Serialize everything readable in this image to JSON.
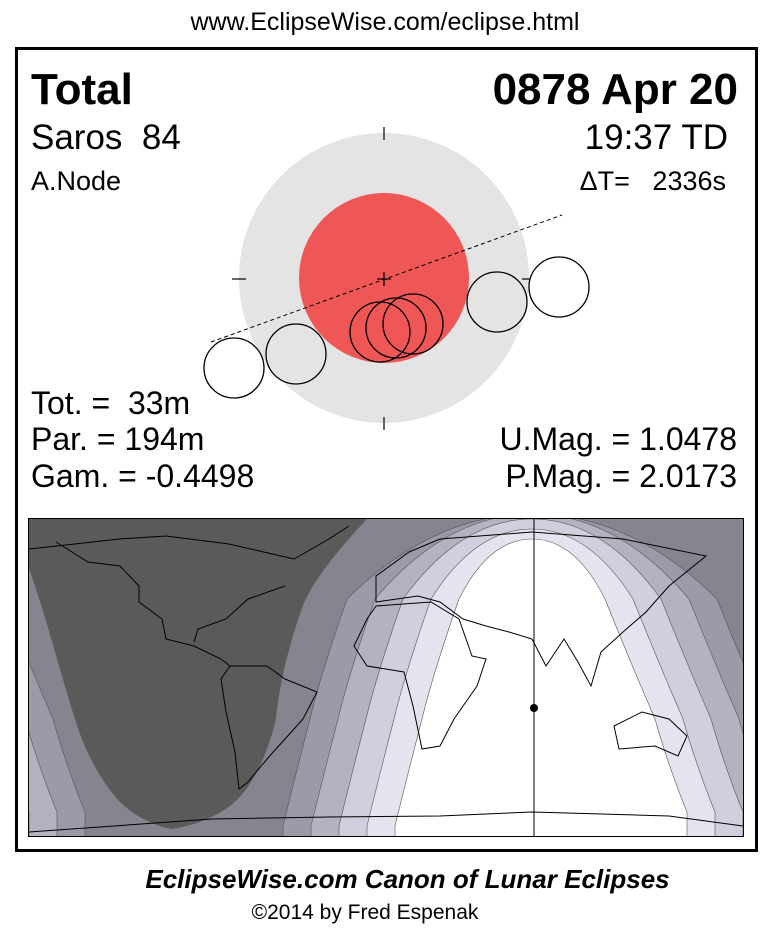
{
  "header": {
    "url": "www.EclipseWise.com/eclipse.html"
  },
  "eclipse": {
    "type": "Total",
    "date": "0878 Apr 20",
    "saros": "Saros  84",
    "time": "19:37 TD",
    "node": "A.Node",
    "delta_t": "ΔT=   2336s",
    "totality": "Tot. =  33m",
    "partial": "Par. = 194m",
    "gamma": "Gam. = -0.4498",
    "umbral_mag": "U.Mag. = 1.0478",
    "penumbral_mag": "P.Mag. = 2.0173"
  },
  "colors": {
    "umbra": "#ef5656",
    "penumbra": "#e4e4e4",
    "night": "#5a5a5a",
    "bands": [
      "#ffffff",
      "#e4e4ee",
      "#cfcfdd",
      "#b2b2c0",
      "#9a9aa8",
      "#85858f"
    ]
  },
  "footer": {
    "title": "EclipseWise.com Canon of Lunar Eclipses",
    "copyright": "©2014 by Fred Espenak"
  }
}
